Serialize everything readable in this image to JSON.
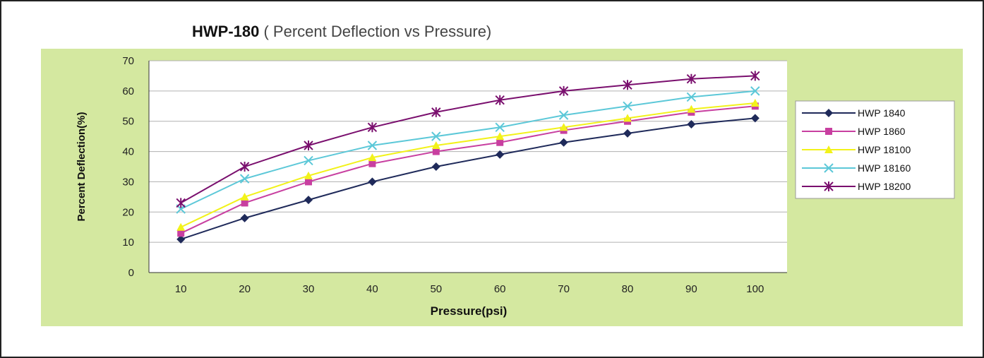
{
  "chart_data": {
    "type": "line",
    "title_bold": "HWP-180",
    "title_rest": " ( Percent Deflection vs Pressure)",
    "xlabel": "Pressure(psi)",
    "ylabel": "Percent Deflection(%)",
    "x": [
      10,
      20,
      30,
      40,
      50,
      60,
      70,
      80,
      90,
      100
    ],
    "x_tick_labels": [
      "10",
      "20",
      "30",
      "40",
      "50",
      "60",
      "70",
      "80",
      "90",
      "100"
    ],
    "y_tick_labels": [
      "0",
      "10",
      "20",
      "30",
      "40",
      "50",
      "60",
      "70"
    ],
    "ylim": [
      0,
      70
    ],
    "grid": "horizontal",
    "legend_position": "right",
    "series": [
      {
        "name": "HWP 1840",
        "color": "#1f2a5a",
        "marker": "diamond",
        "values": [
          11,
          18,
          24,
          30,
          35,
          39,
          43,
          46,
          49,
          51
        ]
      },
      {
        "name": "HWP 1860",
        "color": "#c83fa0",
        "marker": "square",
        "values": [
          13,
          23,
          30,
          36,
          40,
          43,
          47,
          50,
          53,
          55
        ]
      },
      {
        "name": "HWP 18100",
        "color": "#f2f21a",
        "marker": "triangle",
        "values": [
          15,
          25,
          32,
          38,
          42,
          45,
          48,
          51,
          54,
          56
        ]
      },
      {
        "name": "HWP 18160",
        "color": "#5cc8d8",
        "marker": "x",
        "values": [
          21,
          31,
          37,
          42,
          45,
          48,
          52,
          55,
          58,
          60
        ]
      },
      {
        "name": "HWP 18200",
        "color": "#7a0f6e",
        "marker": "star",
        "values": [
          23,
          35,
          42,
          48,
          53,
          57,
          60,
          62,
          64,
          65
        ]
      }
    ],
    "colors": {
      "panel": "#d4e8a0",
      "plot_bg": "#ffffff",
      "grid": "#b0b0b0",
      "border": "#222222"
    }
  }
}
